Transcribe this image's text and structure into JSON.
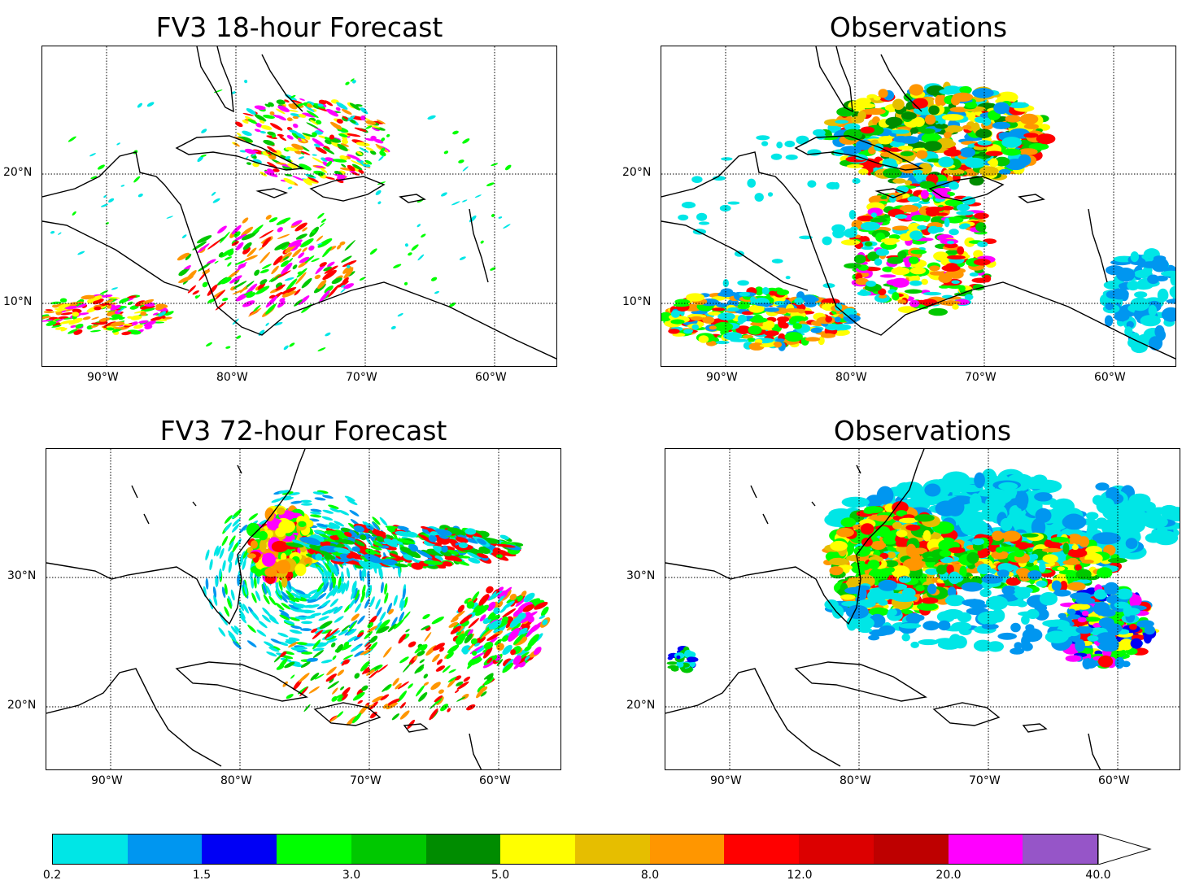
{
  "panels": [
    {
      "title": "FV3 18-hour Forecast",
      "lon_labels": [
        "90°W",
        "80°W",
        "70°W",
        "60°W"
      ],
      "lat_labels": [
        "20°N",
        "10°N"
      ]
    },
    {
      "title": "Observations",
      "lon_labels": [
        "90°W",
        "80°W",
        "70°W",
        "60°W"
      ],
      "lat_labels": [
        "20°N",
        "10°N"
      ]
    },
    {
      "title": "FV3 72-hour Forecast",
      "lon_labels": [
        "90°W",
        "80°W",
        "70°W",
        "60°W"
      ],
      "lat_labels": [
        "30°N",
        "20°N"
      ]
    },
    {
      "title": "Observations",
      "lon_labels": [
        "90°W",
        "80°W",
        "70°W",
        "60°W"
      ],
      "lat_labels": [
        "30°N",
        "20°N"
      ]
    }
  ],
  "colorbar": {
    "colors": [
      "#00e6e6",
      "#0096f0",
      "#0000f5",
      "#00ff00",
      "#00c800",
      "#008c00",
      "#ffff00",
      "#e6be00",
      "#ff9600",
      "#ff0000",
      "#dc0000",
      "#be0000",
      "#ff00ff",
      "#9655c8",
      "#ffffff"
    ],
    "labels": [
      "0.2",
      "1.5",
      "3.0",
      "5.0",
      "8.0",
      "12.0",
      "20.0",
      "40.0"
    ]
  }
}
